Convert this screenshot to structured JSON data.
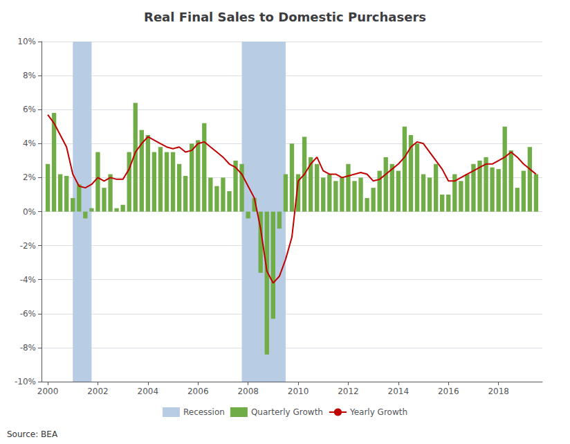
{
  "chart_data": {
    "type": "bar",
    "title": "Real Final Sales to Domestic Purchasers",
    "annotations": [
      "Source: BEA"
    ],
    "x": [
      2000.0,
      2000.25,
      2000.5,
      2000.75,
      2001.0,
      2001.25,
      2001.5,
      2001.75,
      2002.0,
      2002.25,
      2002.5,
      2002.75,
      2003.0,
      2003.25,
      2003.5,
      2003.75,
      2004.0,
      2004.25,
      2004.5,
      2004.75,
      2005.0,
      2005.25,
      2005.5,
      2005.75,
      2006.0,
      2006.25,
      2006.5,
      2006.75,
      2007.0,
      2007.25,
      2007.5,
      2007.75,
      2008.0,
      2008.25,
      2008.5,
      2008.75,
      2009.0,
      2009.25,
      2009.5,
      2009.75,
      2010.0,
      2010.25,
      2010.5,
      2010.75,
      2011.0,
      2011.25,
      2011.5,
      2011.75,
      2012.0,
      2012.25,
      2012.5,
      2012.75,
      2013.0,
      2013.25,
      2013.5,
      2013.75,
      2014.0,
      2014.25,
      2014.5,
      2014.75,
      2015.0,
      2015.25,
      2015.5,
      2015.75,
      2016.0,
      2016.25,
      2016.5,
      2016.75,
      2017.0,
      2017.25,
      2017.5,
      2017.75,
      2018.0,
      2018.25,
      2018.5,
      2018.75,
      2019.0,
      2019.25,
      2019.5
    ],
    "series": [
      {
        "name": "Quarterly Growth",
        "type": "bar",
        "color": "#70AD47",
        "values": [
          2.8,
          5.8,
          2.2,
          2.1,
          0.8,
          1.6,
          -0.4,
          0.2,
          3.5,
          1.4,
          2.2,
          0.2,
          0.4,
          3.5,
          6.4,
          4.8,
          4.5,
          3.5,
          3.8,
          3.5,
          3.5,
          2.8,
          2.1,
          4.0,
          4.2,
          5.2,
          2.0,
          1.5,
          2.0,
          1.2,
          3.0,
          2.8,
          -0.4,
          0.8,
          -3.6,
          -8.4,
          -6.3,
          -1.0,
          2.2,
          4.0,
          2.2,
          4.4,
          3.2,
          2.8,
          2.0,
          2.2,
          1.8,
          2.0,
          2.8,
          1.8,
          2.0,
          0.8,
          1.4,
          2.4,
          3.2,
          2.8,
          2.4,
          5.0,
          4.5,
          4.0,
          2.2,
          2.0,
          2.8,
          1.0,
          1.0,
          2.2,
          1.8,
          2.2,
          2.8,
          3.0,
          3.2,
          2.6,
          2.5,
          5.0,
          3.6,
          1.4,
          2.4,
          3.8,
          2.2
        ]
      },
      {
        "name": "Yearly Growth",
        "type": "line",
        "color": "#C00000",
        "values": [
          5.7,
          5.2,
          4.5,
          3.8,
          2.2,
          1.5,
          1.4,
          1.6,
          2.0,
          1.8,
          2.0,
          1.9,
          1.9,
          2.5,
          3.5,
          4.0,
          4.4,
          4.2,
          4.0,
          3.8,
          3.7,
          3.8,
          3.5,
          3.6,
          4.0,
          4.1,
          3.8,
          3.5,
          3.2,
          2.8,
          2.6,
          2.2,
          1.5,
          0.8,
          -1.0,
          -3.5,
          -4.2,
          -3.8,
          -2.8,
          -1.5,
          1.8,
          2.2,
          2.8,
          3.2,
          2.4,
          2.2,
          2.2,
          2.0,
          2.1,
          2.2,
          2.3,
          2.2,
          1.8,
          1.9,
          2.2,
          2.5,
          2.8,
          3.2,
          3.8,
          4.1,
          4.0,
          3.5,
          3.0,
          2.5,
          1.8,
          1.8,
          2.0,
          2.2,
          2.4,
          2.6,
          2.8,
          2.8,
          3.0,
          3.2,
          3.5,
          3.2,
          2.8,
          2.5,
          2.2
        ]
      }
    ],
    "shaded_periods": {
      "name": "Recession",
      "color": "#b8cce4",
      "periods": [
        [
          2001.0,
          2001.75
        ],
        [
          2007.75,
          2009.5
        ]
      ]
    },
    "xlim": [
      1999.75,
      2019.75
    ],
    "xticks": [
      2000,
      2002,
      2004,
      2006,
      2008,
      2010,
      2012,
      2014,
      2016,
      2018
    ],
    "ylim": [
      -10,
      10
    ],
    "yticks": [
      {
        "value": -10,
        "label": "-10%"
      },
      {
        "value": -8,
        "label": "-8%"
      },
      {
        "value": -6,
        "label": "-6%"
      },
      {
        "value": -4,
        "label": "-4%"
      },
      {
        "value": -2,
        "label": "-2%"
      },
      {
        "value": 0,
        "label": "0%"
      },
      {
        "value": 2,
        "label": "2%"
      },
      {
        "value": 4,
        "label": "4%"
      },
      {
        "value": 6,
        "label": "6%"
      },
      {
        "value": 8,
        "label": "8%"
      },
      {
        "value": 10,
        "label": "10%"
      }
    ],
    "grid": "y",
    "legend": "bottom"
  }
}
